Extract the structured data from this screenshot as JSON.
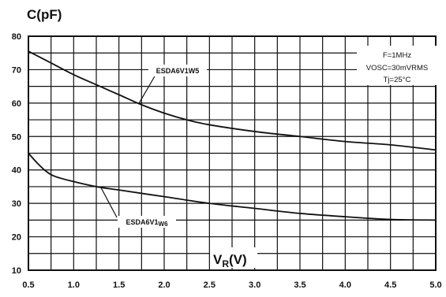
{
  "chart_data": {
    "type": "line",
    "title": "",
    "ylabel": "C(pF)",
    "xlabel": "VR(V)",
    "xlabel_main": "V",
    "xlabel_sub": "R",
    "xlabel_tail": "(V)",
    "xlim": [
      0.5,
      5.0
    ],
    "ylim": [
      10,
      80
    ],
    "grid": true,
    "x_ticks": [
      "0.5",
      "1.0",
      "1.5",
      "2.0",
      "2.5",
      "3.0",
      "3.5",
      "4.0",
      "4.5",
      "5.0"
    ],
    "y_ticks": [
      "10",
      "20",
      "30",
      "40",
      "50",
      "60",
      "70",
      "80"
    ],
    "conditions": {
      "line1": "F=1MHz",
      "line2": "VOSC=30mVRMS",
      "line3": "Tj=25°C"
    },
    "series": [
      {
        "name": "ESDA6V1W5",
        "x": [
          0.5,
          0.75,
          1.0,
          1.25,
          1.5,
          1.75,
          2.0,
          2.25,
          2.5,
          3.0,
          3.5,
          4.0,
          4.5,
          5.0
        ],
        "y": [
          75.5,
          72,
          68.5,
          65.5,
          62.5,
          59.5,
          57,
          55,
          53.5,
          51.5,
          50,
          48.5,
          47.5,
          46
        ]
      },
      {
        "name": "ESDA6V1W6",
        "x": [
          0.5,
          0.6,
          0.7,
          0.8,
          1.0,
          1.25,
          1.5,
          2.0,
          2.5,
          3.0,
          3.5,
          4.0,
          4.5,
          5.0
        ],
        "y": [
          45,
          42,
          39.5,
          38,
          36.5,
          35,
          34,
          32,
          30,
          28.5,
          27,
          26,
          25.2,
          25
        ]
      }
    ],
    "annotations": [
      {
        "label": "ESDA6V1W5",
        "series": "ESDA6V1W5",
        "at_x": 1.72
      },
      {
        "label_main": "ESDA6V1",
        "label_sub": "W6",
        "series": "ESDA6V1W6",
        "at_x": 1.3
      }
    ]
  }
}
